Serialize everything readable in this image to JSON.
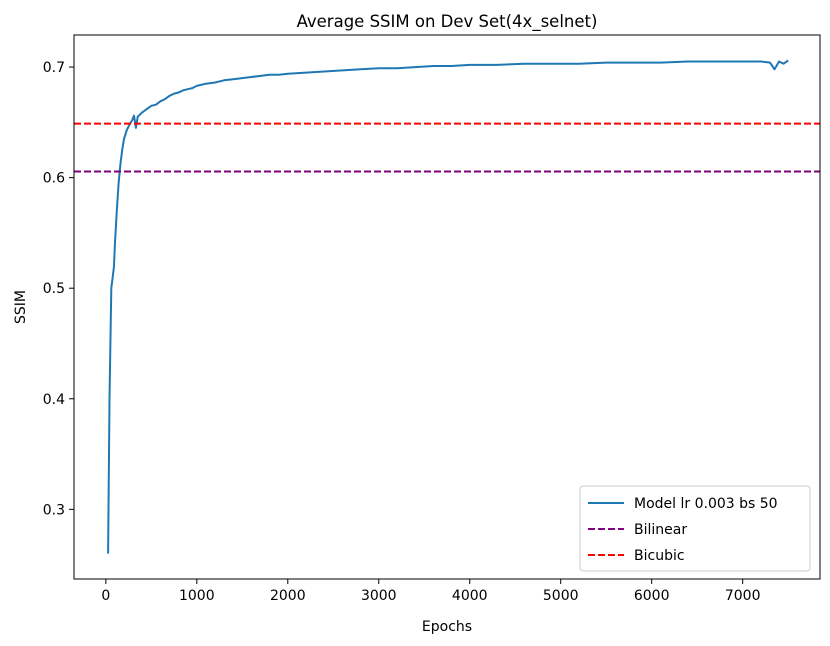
{
  "chart_data": {
    "type": "line",
    "title": "Average SSIM on Dev Set(4x_selnet)",
    "xlabel": "Epochs",
    "ylabel": "SSIM",
    "xlim": [
      -350,
      7850
    ],
    "ylim": [
      0.237,
      0.729
    ],
    "xticks": [
      0,
      1000,
      2000,
      3000,
      4000,
      5000,
      6000,
      7000
    ],
    "yticks": [
      0.3,
      0.4,
      0.5,
      0.6,
      0.7
    ],
    "grid": false,
    "legend_position": "bottom-right",
    "series": [
      {
        "name": "Model lr 0.003 bs 50",
        "color": "#1f77b4",
        "style": "solid",
        "x": [
          25,
          40,
          50,
          60,
          75,
          90,
          100,
          120,
          140,
          160,
          180,
          200,
          230,
          260,
          290,
          310,
          330,
          350,
          400,
          450,
          500,
          550,
          600,
          650,
          700,
          750,
          800,
          850,
          900,
          950,
          1000,
          1100,
          1200,
          1300,
          1400,
          1500,
          1600,
          1700,
          1800,
          1900,
          2000,
          2200,
          2400,
          2600,
          2800,
          3000,
          3200,
          3400,
          3600,
          3800,
          4000,
          4300,
          4600,
          4900,
          5200,
          5500,
          5800,
          6100,
          6400,
          6700,
          7000,
          7200,
          7300,
          7350,
          7400,
          7450,
          7500
        ],
        "y": [
          0.26,
          0.4,
          0.45,
          0.5,
          0.51,
          0.52,
          0.54,
          0.57,
          0.595,
          0.612,
          0.625,
          0.635,
          0.643,
          0.648,
          0.652,
          0.656,
          0.645,
          0.655,
          0.659,
          0.662,
          0.665,
          0.666,
          0.669,
          0.671,
          0.674,
          0.676,
          0.677,
          0.679,
          0.68,
          0.681,
          0.683,
          0.685,
          0.686,
          0.688,
          0.689,
          0.69,
          0.691,
          0.692,
          0.693,
          0.693,
          0.694,
          0.695,
          0.696,
          0.697,
          0.698,
          0.699,
          0.699,
          0.7,
          0.701,
          0.701,
          0.702,
          0.702,
          0.703,
          0.703,
          0.703,
          0.704,
          0.704,
          0.704,
          0.705,
          0.705,
          0.705,
          0.705,
          0.704,
          0.698,
          0.705,
          0.703,
          0.706
        ]
      },
      {
        "name": "Bilinear",
        "color": "#800080",
        "style": "dashed",
        "y_const": 0.6055
      },
      {
        "name": "Bicubic",
        "color": "#ff0000",
        "style": "dashed",
        "y_const": 0.6488
      }
    ]
  }
}
